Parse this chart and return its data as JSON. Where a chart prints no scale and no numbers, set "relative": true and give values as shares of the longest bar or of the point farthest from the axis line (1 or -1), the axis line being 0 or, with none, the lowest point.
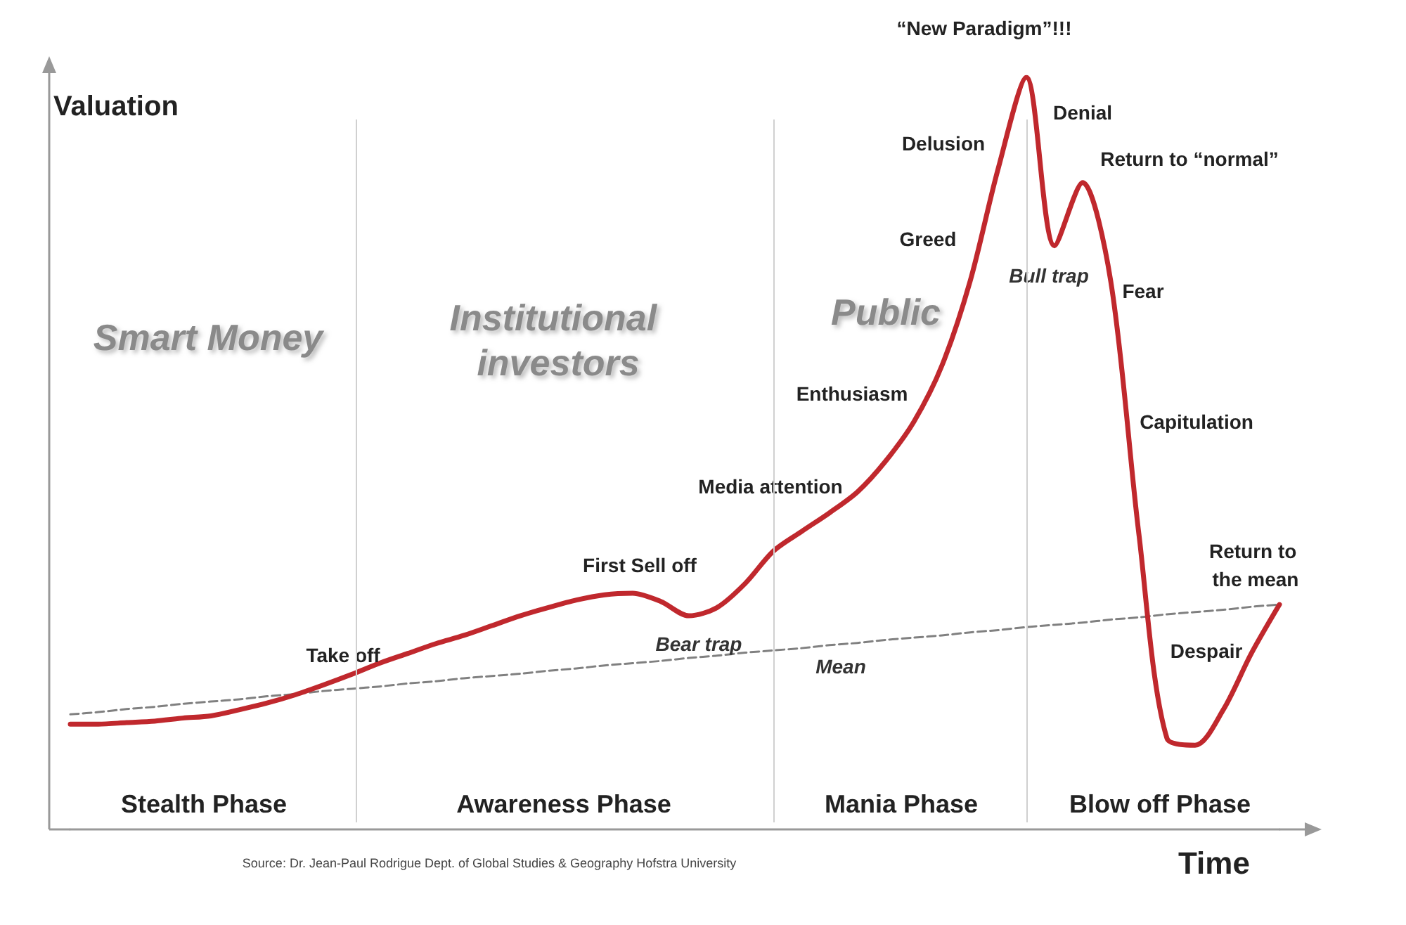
{
  "chart_data": {
    "type": "line",
    "relative": true,
    "xlabel": "Time",
    "ylabel": "Valuation",
    "marker": "none",
    "grid": false,
    "legend": false,
    "categories": [
      null,
      null,
      null,
      null,
      null,
      null,
      null,
      null,
      null,
      null,
      null,
      null,
      null,
      null,
      null,
      null,
      null,
      null,
      null,
      null,
      null,
      null,
      null,
      null,
      null,
      null,
      null,
      null,
      null,
      null,
      null,
      null,
      null,
      null,
      null,
      null,
      null,
      null,
      null,
      null,
      null,
      null,
      null,
      null
    ],
    "series": [
      {
        "color": "#c0282d",
        "line_style": "solid",
        "values": [
          0.14,
          0.14,
          0.142,
          0.144,
          0.148,
          0.151,
          0.159,
          0.168,
          0.179,
          0.192,
          0.206,
          0.221,
          0.234,
          0.247,
          0.258,
          0.271,
          0.284,
          0.295,
          0.305,
          0.312,
          0.314,
          0.303,
          0.284,
          0.295,
          0.327,
          0.37,
          0.396,
          0.421,
          0.449,
          0.49,
          0.542,
          0.617,
          0.729,
          0.879,
          1.0,
          0.776,
          0.86,
          0.729,
          0.393,
          0.121,
          0.112,
          0.159,
          0.234,
          0.299
        ]
      },
      {
        "name": "Mean",
        "color": "#808080",
        "line_style": "dashed",
        "values": [
          0.153,
          0.156,
          0.16,
          0.163,
          0.167,
          0.17,
          0.173,
          0.177,
          0.18,
          0.184,
          0.187,
          0.19,
          0.194,
          0.197,
          0.201,
          0.204,
          0.207,
          0.211,
          0.214,
          0.218,
          0.221,
          0.224,
          0.228,
          0.231,
          0.235,
          0.238,
          0.241,
          0.245,
          0.248,
          0.252,
          0.255,
          0.258,
          0.262,
          0.265,
          0.269,
          0.272,
          0.275,
          0.279,
          0.282,
          0.286,
          0.289,
          0.292,
          0.296,
          0.299
        ]
      }
    ],
    "annotations": [
      "Smart Money",
      "Institutional investors",
      "Public",
      "Take off",
      "First Sell off",
      "Bear trap",
      "Media attention",
      "Enthusiasm",
      "Greed",
      "Delusion",
      "“New Paradigm”!!!",
      "Denial",
      "Return to “normal”",
      "Bull trap",
      "Fear",
      "Capitulation",
      "Return to the mean",
      "Despair",
      "Stealth Phase",
      "Awareness Phase",
      "Mania Phase",
      "Blow off Phase",
      "Source: Dr. Jean-Paul Rodrigue Dept. of Global Studies & Geography Hofstra University"
    ]
  }
}
